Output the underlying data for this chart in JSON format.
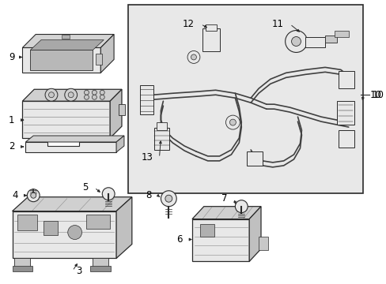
{
  "bg_color": "#ffffff",
  "part_color": "#2a2a2a",
  "light_gray": "#e8e8e8",
  "mid_gray": "#c8c8c8",
  "dark_gray": "#a0a0a0",
  "box_bg": "#e8e8e8",
  "label_fontsize": 8.5
}
